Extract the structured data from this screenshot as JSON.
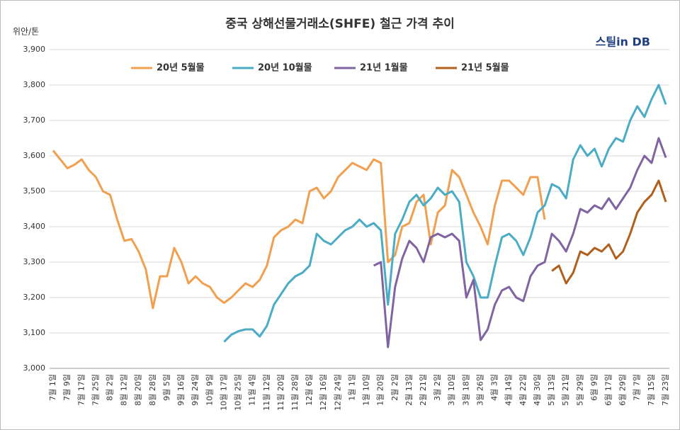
{
  "chart_data": {
    "type": "line",
    "title": "중국 상해선물거래소(SHFE) 철근 가격 추이",
    "y_label": "위안/톤",
    "brand": "스틸in DB",
    "categories": [
      "7월 1일",
      null,
      "7월 9일",
      null,
      "7월 17일",
      null,
      "7월 25일",
      null,
      "8월 2일",
      null,
      "8월 12일",
      null,
      "8월 20일",
      null,
      "8월 28일",
      null,
      "9월 5일",
      null,
      "9월 16일",
      null,
      "9월 24일",
      null,
      "10월 9일",
      null,
      "10월 17일",
      null,
      "10월 25일",
      null,
      "11월 4일",
      null,
      "11월 12일",
      null,
      "11월 20일",
      null,
      "11월 28일",
      null,
      "12월 6일",
      null,
      "12월 16일",
      null,
      "12월 24일",
      null,
      "1월 1일",
      null,
      "1월 10일",
      null,
      "1월 20일",
      null,
      "2월 2일",
      null,
      "2월 13일",
      null,
      "2월 21일",
      null,
      "3월 2일",
      null,
      "3월 10일",
      null,
      "3월 18일",
      null,
      "3월 26일",
      null,
      "4월 3일",
      null,
      "4월 14일",
      null,
      "4월 22일",
      null,
      "4월 30일",
      null,
      "5월 13일",
      null,
      "5월 21일",
      null,
      "5월 29일",
      null,
      "6월 9일",
      null,
      "6월 17일",
      null,
      "6월 29일",
      null,
      "7월 7일",
      null,
      "7월 15일",
      null,
      "7월 23일"
    ],
    "series": [
      {
        "name": "20년 5월물",
        "color": "#f0a050",
        "values": [
          3615,
          3590,
          3565,
          3575,
          3590,
          3560,
          3540,
          3500,
          3490,
          3420,
          3360,
          3365,
          3330,
          3280,
          3170,
          3260,
          3260,
          3340,
          3300,
          3240,
          3260,
          3240,
          3230,
          3200,
          3185,
          3200,
          3220,
          3240,
          3230,
          3250,
          3290,
          3370,
          3390,
          3400,
          3420,
          3410,
          3500,
          3510,
          3480,
          3500,
          3540,
          3560,
          3580,
          3570,
          3560,
          3590,
          3580,
          3300,
          3320,
          3400,
          3410,
          3470,
          3490,
          3350,
          3440,
          3460,
          3560,
          3540,
          3490,
          3440,
          3400,
          3350,
          3460,
          3530,
          3530,
          3510,
          3490,
          3540,
          3540,
          3420,
          null,
          null,
          null,
          null,
          null,
          null,
          null,
          null,
          null,
          null,
          null,
          null,
          null,
          null,
          null,
          null,
          null
        ]
      },
      {
        "name": "20년 10월물",
        "color": "#4bacc6",
        "values": [
          null,
          null,
          null,
          null,
          null,
          null,
          null,
          null,
          null,
          null,
          null,
          null,
          null,
          null,
          null,
          null,
          null,
          null,
          null,
          null,
          null,
          null,
          null,
          null,
          3075,
          3095,
          3105,
          3110,
          3110,
          3090,
          3120,
          3180,
          3210,
          3240,
          3260,
          3270,
          3290,
          3380,
          3360,
          3350,
          3370,
          3390,
          3400,
          3420,
          3400,
          3410,
          3390,
          3180,
          3380,
          3420,
          3470,
          3490,
          3460,
          3480,
          3510,
          3490,
          3500,
          3470,
          3300,
          3260,
          3200,
          3200,
          3290,
          3370,
          3380,
          3360,
          3320,
          3370,
          3440,
          3460,
          3520,
          3510,
          3480,
          3590,
          3630,
          3600,
          3620,
          3570,
          3620,
          3650,
          3640,
          3700,
          3740,
          3710,
          3760,
          3800,
          3745
        ]
      },
      {
        "name": "21년 1월물",
        "color": "#8064a2",
        "values": [
          null,
          null,
          null,
          null,
          null,
          null,
          null,
          null,
          null,
          null,
          null,
          null,
          null,
          null,
          null,
          null,
          null,
          null,
          null,
          null,
          null,
          null,
          null,
          null,
          null,
          null,
          null,
          null,
          null,
          null,
          null,
          null,
          null,
          null,
          null,
          null,
          null,
          null,
          null,
          null,
          null,
          null,
          null,
          null,
          null,
          3290,
          3300,
          3060,
          3230,
          3310,
          3360,
          3340,
          3300,
          3370,
          3380,
          3370,
          3380,
          3360,
          3200,
          3250,
          3080,
          3110,
          3180,
          3220,
          3230,
          3200,
          3190,
          3260,
          3290,
          3300,
          3380,
          3360,
          3330,
          3380,
          3450,
          3440,
          3460,
          3450,
          3480,
          3450,
          3480,
          3510,
          3560,
          3600,
          3580,
          3650,
          3595
        ]
      },
      {
        "name": "21년 5월물",
        "color": "#b0601c",
        "values": [
          null,
          null,
          null,
          null,
          null,
          null,
          null,
          null,
          null,
          null,
          null,
          null,
          null,
          null,
          null,
          null,
          null,
          null,
          null,
          null,
          null,
          null,
          null,
          null,
          null,
          null,
          null,
          null,
          null,
          null,
          null,
          null,
          null,
          null,
          null,
          null,
          null,
          null,
          null,
          null,
          null,
          null,
          null,
          null,
          null,
          null,
          null,
          null,
          null,
          null,
          null,
          null,
          null,
          null,
          null,
          null,
          null,
          null,
          null,
          null,
          null,
          null,
          null,
          null,
          null,
          null,
          null,
          null,
          null,
          null,
          3275,
          3290,
          3240,
          3270,
          3330,
          3320,
          3340,
          3330,
          3350,
          3310,
          3330,
          3380,
          3440,
          3470,
          3490,
          3530,
          3470
        ]
      }
    ],
    "ylim": [
      3000,
      3900
    ],
    "yticks": [
      {
        "value": 3000,
        "label": "3,000"
      },
      {
        "value": 3100,
        "label": "3,100"
      },
      {
        "value": 3200,
        "label": "3,200"
      },
      {
        "value": 3300,
        "label": "3,300"
      },
      {
        "value": 3400,
        "label": "3,400"
      },
      {
        "value": 3500,
        "label": "3,500"
      },
      {
        "value": 3600,
        "label": "3,600"
      },
      {
        "value": 3700,
        "label": "3,700"
      },
      {
        "value": 3800,
        "label": "3,800"
      },
      {
        "value": 3900,
        "label": "3,900"
      }
    ],
    "grid": true,
    "legend": "top"
  }
}
